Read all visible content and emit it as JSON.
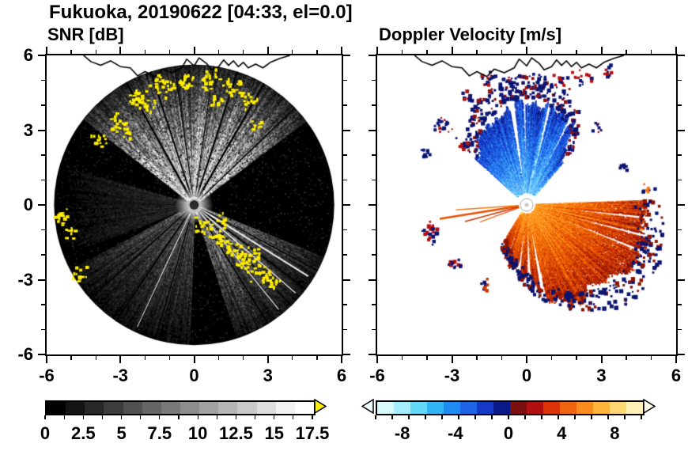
{
  "figure": {
    "title": "Fukuoka, 20190622 [04:33, el=0.0]",
    "background": "#ffffff",
    "text_color": "#000000"
  },
  "coastline": [
    [
      -4.5,
      6.0
    ],
    [
      -4.2,
      5.75
    ],
    [
      -3.8,
      5.6
    ],
    [
      -3.4,
      5.78
    ],
    [
      -3.0,
      5.55
    ],
    [
      -2.6,
      5.5
    ],
    [
      -2.3,
      5.18
    ],
    [
      -2.0,
      5.35
    ],
    [
      -1.6,
      5.15
    ],
    [
      -1.3,
      5.45
    ],
    [
      -0.9,
      5.3
    ],
    [
      -0.5,
      5.5
    ],
    [
      -0.3,
      5.85
    ],
    [
      0.0,
      5.58
    ],
    [
      0.2,
      5.9
    ],
    [
      0.5,
      5.68
    ],
    [
      0.7,
      5.42
    ],
    [
      1.0,
      5.55
    ],
    [
      1.2,
      5.82
    ],
    [
      1.4,
      5.6
    ],
    [
      1.6,
      5.78
    ],
    [
      1.8,
      5.55
    ],
    [
      2.0,
      5.72
    ],
    [
      2.2,
      5.5
    ],
    [
      2.5,
      5.65
    ],
    [
      2.8,
      5.5
    ],
    [
      3.1,
      5.72
    ],
    [
      3.5,
      5.88
    ],
    [
      3.9,
      6.0
    ]
  ],
  "chart_data": [
    {
      "type": "heatmap",
      "subtype": "radar-ppi",
      "title": "SNR [dB]",
      "xlim": [
        -6,
        6
      ],
      "ylim": [
        -6,
        6
      ],
      "xticks": [
        -6,
        -3,
        0,
        3,
        6
      ],
      "yticks": [
        -6,
        -3,
        0,
        3,
        6
      ],
      "xtick_labels": [
        "-6",
        "-3",
        "0",
        "3",
        "6"
      ],
      "ytick_labels": [
        "-6",
        "-3",
        "0",
        "3",
        "6"
      ],
      "minor_tick_step": 1,
      "scan_radius": 5.7,
      "disk_color": "#000000",
      "speckle_color": "#ffee00",
      "sectors": [
        {
          "label": "north-bright-fan",
          "a0": 308,
          "a1": 413,
          "intensity": 0.95
        },
        {
          "label": "southeast-fan",
          "a0": 112,
          "a1": 162,
          "intensity": 0.55
        },
        {
          "label": "southwest-fan",
          "a0": 182,
          "a1": 242,
          "intensity": 0.36
        },
        {
          "label": "west-faint",
          "a0": 248,
          "a1": 286,
          "intensity": 0.16
        }
      ],
      "spokes": [
        {
          "a": 331,
          "w": 2.5
        },
        {
          "a": 342,
          "w": 1.8
        },
        {
          "a": 352,
          "w": 1.2
        },
        {
          "a": 8,
          "w": 1.2
        },
        {
          "a": 18,
          "w": 2.0
        },
        {
          "a": 30,
          "w": 2.4
        },
        {
          "a": 46,
          "w": 1.4
        },
        {
          "a": 118,
          "w": 1.4
        },
        {
          "a": 127,
          "w": 1.8
        },
        {
          "a": 136,
          "w": 1.4
        },
        {
          "a": 148,
          "w": 1.6
        },
        {
          "a": 196,
          "w": 1.4
        },
        {
          "a": 214,
          "w": 1.8
        },
        {
          "a": 228,
          "w": 1.4
        }
      ],
      "white_rays": [
        {
          "a": 122,
          "w": 2.0
        },
        {
          "a": 131,
          "w": 1.4
        },
        {
          "a": 141,
          "w": 1.2
        },
        {
          "a": 205,
          "w": 1.0
        }
      ],
      "speckle_clusters": [
        {
          "x": -2.3,
          "y": 4.3,
          "n": 22,
          "s": 0.5
        },
        {
          "x": -1.3,
          "y": 4.8,
          "n": 26,
          "s": 0.55
        },
        {
          "x": -0.4,
          "y": 5.0,
          "n": 20,
          "s": 0.45
        },
        {
          "x": 0.6,
          "y": 5.05,
          "n": 22,
          "s": 0.5
        },
        {
          "x": 1.5,
          "y": 4.75,
          "n": 20,
          "s": 0.5
        },
        {
          "x": 2.2,
          "y": 4.25,
          "n": 16,
          "s": 0.45
        },
        {
          "x": 0.9,
          "y": 4.25,
          "n": 12,
          "s": 0.4
        },
        {
          "x": -1.9,
          "y": 3.95,
          "n": 12,
          "s": 0.4
        },
        {
          "x": -3.15,
          "y": 3.35,
          "n": 18,
          "s": 0.45
        },
        {
          "x": -3.9,
          "y": 2.65,
          "n": 14,
          "s": 0.4
        },
        {
          "x": -2.7,
          "y": 2.9,
          "n": 10,
          "s": 0.35
        },
        {
          "x": 2.5,
          "y": 3.2,
          "n": 8,
          "s": 0.3
        },
        {
          "x": -5.35,
          "y": -0.45,
          "n": 16,
          "s": 0.4
        },
        {
          "x": -5.0,
          "y": -1.05,
          "n": 10,
          "s": 0.35
        },
        {
          "x": -4.7,
          "y": -2.75,
          "n": 14,
          "s": 0.45
        },
        {
          "x": 0.35,
          "y": -0.85,
          "n": 18,
          "s": 0.45
        },
        {
          "x": 1.0,
          "y": -1.3,
          "n": 20,
          "s": 0.5
        },
        {
          "x": 1.6,
          "y": -1.85,
          "n": 22,
          "s": 0.5
        },
        {
          "x": 2.15,
          "y": -2.25,
          "n": 20,
          "s": 0.5
        },
        {
          "x": 2.7,
          "y": -2.65,
          "n": 18,
          "s": 0.45
        },
        {
          "x": 3.2,
          "y": -3.05,
          "n": 14,
          "s": 0.4
        },
        {
          "x": 1.15,
          "y": -0.55,
          "n": 10,
          "s": 0.35
        },
        {
          "x": 2.4,
          "y": -1.9,
          "n": 10,
          "s": 0.35
        }
      ]
    },
    {
      "type": "heatmap",
      "subtype": "radar-ppi",
      "title": "Doppler Velocity [m/s]",
      "xlim": [
        -6,
        6
      ],
      "ylim": [
        -6,
        6
      ],
      "xticks": [
        -6,
        -3,
        0,
        3,
        6
      ],
      "yticks": [
        -6,
        -3,
        0,
        3,
        6
      ],
      "xtick_labels": [
        "-6",
        "-3",
        "0",
        "3",
        "6"
      ],
      "ytick_labels": [
        "-6",
        "-3",
        "0",
        "3",
        "6"
      ],
      "minor_tick_step": 1,
      "scan_radius": 5.7,
      "fans": [
        {
          "name": "approaching-blue",
          "a0": -48,
          "a1": 41,
          "r_inner": 0.1,
          "edge_profile": [
            [
              -48,
              0.5
            ],
            [
              -30,
              0.68
            ],
            [
              -10,
              0.8
            ],
            [
              10,
              0.8
            ],
            [
              30,
              0.66
            ],
            [
              41,
              0.45
            ]
          ],
          "gaps": [
            [
              -10,
              -7
            ],
            [
              -2,
              -0.5
            ],
            [
              12,
              14
            ],
            [
              26,
              27.5
            ]
          ],
          "palette": [
            "#b4ecff",
            "#78d2fa",
            "#46aaf8",
            "#2a84f0",
            "#1e64e6",
            "#1640d2",
            "#0e28aa",
            "#0a1878"
          ],
          "edge_speckle_colors": [
            "#0a1470",
            "#8c1214"
          ],
          "edge_speckles": 260
        },
        {
          "name": "receding-orange",
          "a0": 88,
          "a1": 212,
          "r_inner": 0.08,
          "edge_profile": [
            [
              88,
              0.82
            ],
            [
              110,
              0.9
            ],
            [
              135,
              0.88
            ],
            [
              155,
              0.72
            ],
            [
              175,
              0.56
            ],
            [
              190,
              0.42
            ],
            [
              212,
              0.3
            ]
          ],
          "gaps": [
            [
              95.5,
              97
            ],
            [
              104,
              105.5
            ],
            [
              111,
              112.5
            ],
            [
              168,
              171
            ],
            [
              176.5,
              179.5
            ],
            [
              185,
              187.5
            ],
            [
              199,
              201
            ]
          ],
          "palette": [
            "#ffc850",
            "#ffa028",
            "#fa8214",
            "#f06400",
            "#dc4600",
            "#c32d00",
            "#a01800",
            "#7d0f00"
          ],
          "edge_speckle_colors": [
            "#0a1470",
            "#8c1400"
          ],
          "edge_speckles": 300
        }
      ],
      "rays": [
        {
          "a": 261,
          "len": 0.62,
          "w": 2.5,
          "color": "#e65000"
        },
        {
          "a": 266,
          "len": 0.5,
          "w": 1.6,
          "color": "#f07814"
        },
        {
          "a": 255,
          "len": 0.45,
          "w": 1.6,
          "color": "#c83200"
        },
        {
          "a": 250,
          "len": 0.35,
          "w": 1.2,
          "color": "#e65000"
        }
      ],
      "blob_clusters": [
        {
          "x": -3.9,
          "y": -1.1,
          "n": 26,
          "s": 0.5,
          "colors": [
            "#0a1470",
            "#b01010"
          ]
        },
        {
          "x": -2.9,
          "y": -2.3,
          "n": 14,
          "s": 0.4,
          "colors": [
            "#0a1470",
            "#b01010"
          ]
        },
        {
          "x": -1.7,
          "y": -3.1,
          "n": 10,
          "s": 0.35,
          "colors": [
            "#0a1470",
            "#d23c00"
          ]
        },
        {
          "x": -3.4,
          "y": 3.2,
          "n": 18,
          "s": 0.45,
          "colors": [
            "#0a1470",
            "#b01010"
          ]
        },
        {
          "x": -2.6,
          "y": 2.5,
          "n": 12,
          "s": 0.4,
          "colors": [
            "#0a1470",
            "#b01010"
          ]
        },
        {
          "x": -4.1,
          "y": 2.1,
          "n": 8,
          "s": 0.3,
          "colors": [
            "#0a1470"
          ]
        },
        {
          "x": -1.6,
          "y": 5.1,
          "n": 16,
          "s": 0.5,
          "colors": [
            "#0a1470",
            "#b01010"
          ]
        },
        {
          "x": 0.4,
          "y": 5.0,
          "n": 12,
          "s": 0.5,
          "colors": [
            "#0a1470"
          ]
        },
        {
          "x": 2.1,
          "y": 5.2,
          "n": 16,
          "s": 0.6,
          "colors": [
            "#0a1470",
            "#b01010"
          ]
        },
        {
          "x": 3.2,
          "y": 5.5,
          "n": 10,
          "s": 0.4,
          "colors": [
            "#b01010",
            "#0a1470"
          ]
        },
        {
          "x": -2.4,
          "y": 4.5,
          "n": 10,
          "s": 0.4,
          "colors": [
            "#0a1470",
            "#b01010"
          ]
        },
        {
          "x": 4.8,
          "y": 0.6,
          "n": 8,
          "s": 0.35,
          "colors": [
            "#f07814",
            "#0a1470"
          ]
        },
        {
          "x": -0.6,
          "y": 4.6,
          "n": 8,
          "s": 0.35,
          "colors": [
            "#0a1470"
          ]
        },
        {
          "x": 1.3,
          "y": 4.9,
          "n": 10,
          "s": 0.4,
          "colors": [
            "#0a1470",
            "#b01010"
          ]
        },
        {
          "x": 3.8,
          "y": 1.6,
          "n": 6,
          "s": 0.3,
          "colors": [
            "#0a1470"
          ]
        },
        {
          "x": 2.8,
          "y": 3.2,
          "n": 8,
          "s": 0.3,
          "colors": [
            "#b01010",
            "#0a1470"
          ]
        }
      ]
    }
  ],
  "colorbars": [
    {
      "name": "snr",
      "range": [
        0,
        17.5
      ],
      "tick_values": [
        0,
        2.5,
        5,
        7.5,
        10,
        12.5,
        15,
        17.5
      ],
      "tick_labels": [
        "0",
        "2.5",
        "5",
        "7.5",
        "10",
        "12.5",
        "15",
        "17.5"
      ],
      "segments": [
        "#000000",
        "#141414",
        "#282828",
        "#3c3c3c",
        "#515151",
        "#656565",
        "#797979",
        "#8d8d8d",
        "#a1a1a1",
        "#b5b5b5",
        "#c9c9c9",
        "#dedede",
        "#f2f2f2",
        "#ffffff"
      ],
      "under_arrow": null,
      "over_arrow": "#ffee00"
    },
    {
      "name": "velocity",
      "range": [
        -10,
        10
      ],
      "tick_values": [
        -8,
        -4,
        0,
        4,
        8
      ],
      "tick_labels": [
        "-8",
        "-4",
        "0",
        "4",
        "8"
      ],
      "segments": [
        "#d8faff",
        "#a4ecff",
        "#62d8f8",
        "#30b4f4",
        "#1e8cf0",
        "#1e64e6",
        "#1438c8",
        "#0a1888",
        "#7a0f10",
        "#b01010",
        "#dc3208",
        "#f06410",
        "#fa8c1e",
        "#ffb43c",
        "#ffd873",
        "#fff0b8"
      ],
      "under_arrow": "#eefcff",
      "over_arrow": "#fffcec"
    }
  ]
}
